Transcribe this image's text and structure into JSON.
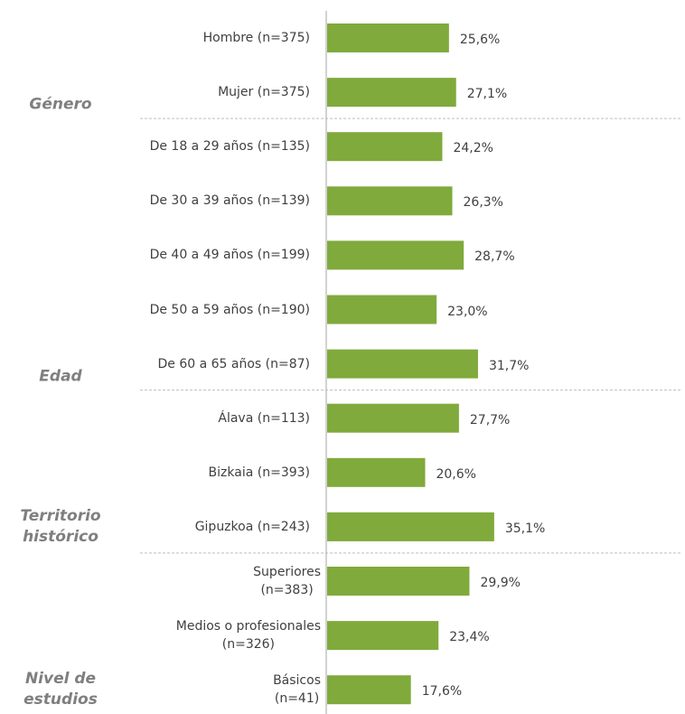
{
  "chart_data": {
    "type": "bar",
    "orientation": "horizontal",
    "color": "#80aa3c",
    "xlim": [
      0,
      75
    ],
    "groups": [
      {
        "name": "Género",
        "categories": [
          "Hombre (n=375)",
          "Mujer (n=375)"
        ],
        "values": [
          25.6,
          27.1
        ],
        "value_labels": [
          "25,6%",
          "27,1%"
        ]
      },
      {
        "name": "Edad",
        "categories": [
          "De 18 a 29 años (n=135)",
          "De 30 a 39 años (n=139)",
          "De 40 a 49 años (n=199)",
          "De 50 a 59 años (n=190)",
          "De 60 a 65 años (n=87)"
        ],
        "values": [
          24.2,
          26.3,
          28.7,
          23.0,
          31.7
        ],
        "value_labels": [
          "24,2%",
          "26,3%",
          "28,7%",
          "23,0%",
          "31,7%"
        ]
      },
      {
        "name": "Territorio\nhistórico",
        "categories": [
          "Álava (n=113)",
          "Bizkaia (n=393)",
          "Gipuzkoa (n=243)"
        ],
        "values": [
          27.7,
          20.6,
          35.1
        ],
        "value_labels": [
          "27,7%",
          "20,6%",
          "35,1%"
        ]
      },
      {
        "name": "Nivel de\nestudios",
        "categories": [
          "Superiores\n(n=383)",
          "Medios o profesionales\n(n=326)",
          "Básicos\n(n=41)"
        ],
        "values": [
          29.9,
          23.4,
          17.6
        ],
        "value_labels": [
          "29,9%",
          "23,4%",
          "17,6%"
        ]
      }
    ]
  }
}
